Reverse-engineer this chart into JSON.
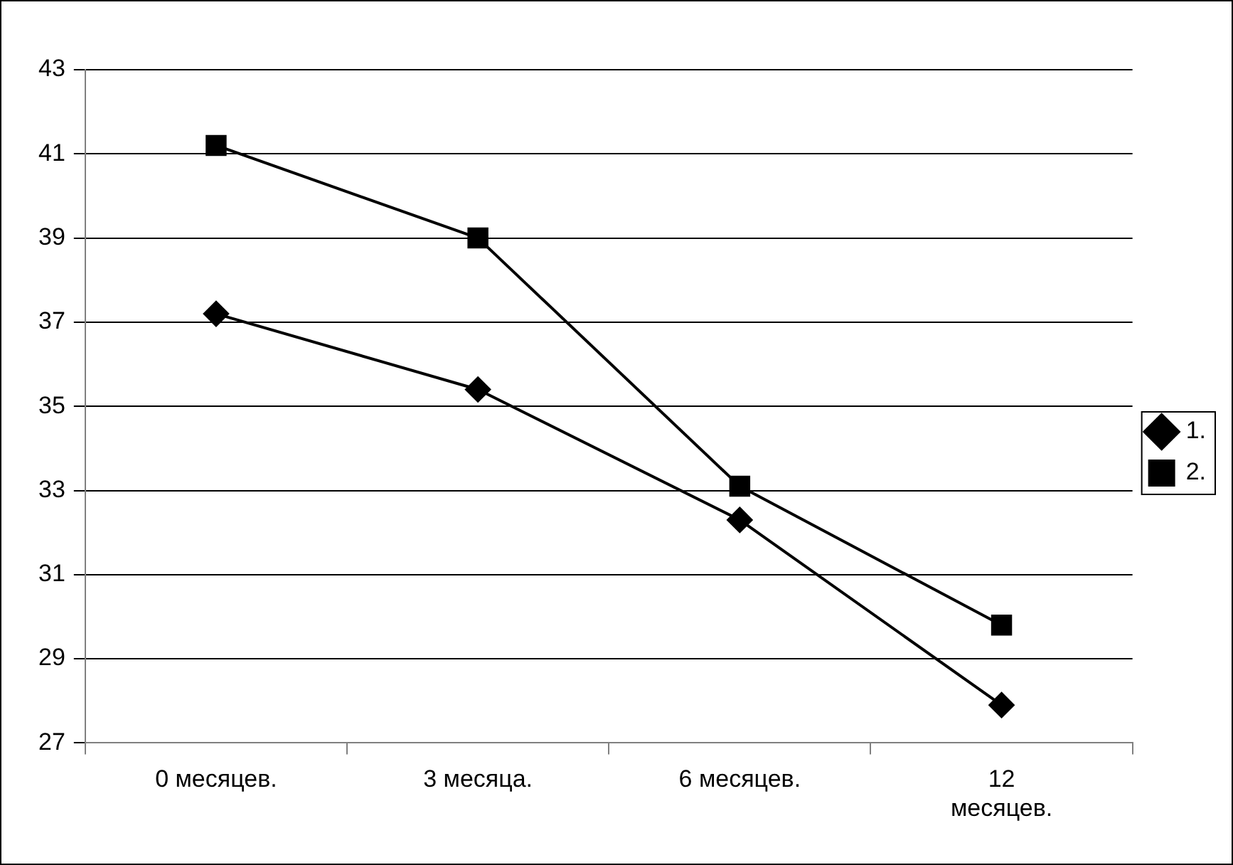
{
  "chart_data": {
    "type": "line",
    "categories": [
      "0 месяцев.",
      "3 месяца.",
      "6 месяцев.",
      "12 месяцев."
    ],
    "series": [
      {
        "name": "1.",
        "color": "#000000",
        "marker": "diamond",
        "values": [
          37.2,
          35.4,
          32.3,
          27.9
        ]
      },
      {
        "name": "2.",
        "color": "#000000",
        "marker": "square",
        "values": [
          41.2,
          39.0,
          33.1,
          29.8
        ]
      }
    ],
    "ylim": [
      27,
      43
    ],
    "yticks": [
      27,
      29,
      31,
      33,
      35,
      37,
      39,
      41,
      43
    ],
    "grid": "y",
    "legend": "right",
    "line_style": "solid"
  }
}
